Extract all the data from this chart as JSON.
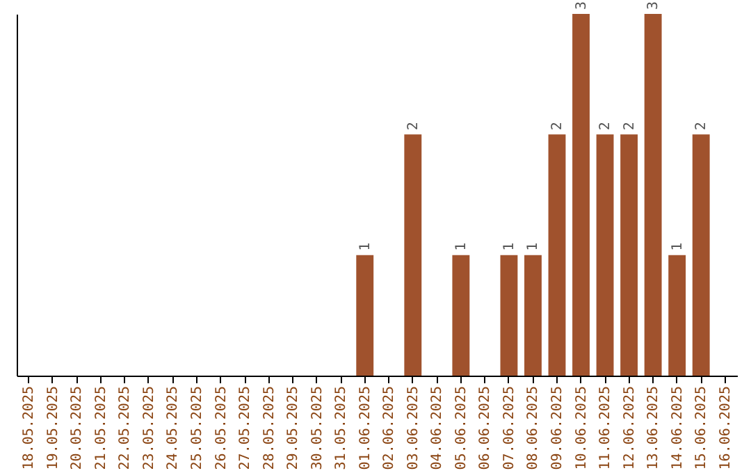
{
  "chart_data": {
    "type": "bar",
    "categories": [
      "18.05.2025",
      "19.05.2025",
      "20.05.2025",
      "21.05.2025",
      "22.05.2025",
      "23.05.2025",
      "24.05.2025",
      "25.05.2025",
      "26.05.2025",
      "27.05.2025",
      "28.05.2025",
      "29.05.2025",
      "30.05.2025",
      "31.05.2025",
      "01.06.2025",
      "02.06.2025",
      "03.06.2025",
      "04.06.2025",
      "05.06.2025",
      "06.06.2025",
      "07.06.2025",
      "08.06.2025",
      "09.06.2025",
      "10.06.2025",
      "11.06.2025",
      "12.06.2025",
      "13.06.2025",
      "14.06.2025",
      "15.06.2025",
      "16.06.2025"
    ],
    "values": [
      null,
      null,
      null,
      null,
      null,
      null,
      null,
      null,
      null,
      null,
      null,
      null,
      null,
      null,
      1,
      null,
      2,
      null,
      1,
      null,
      1,
      1,
      2,
      3,
      2,
      2,
      3,
      1,
      2,
      null
    ],
    "data_labels": true,
    "color": "#a0522d",
    "tick_labels": "x",
    "grid": false
  }
}
